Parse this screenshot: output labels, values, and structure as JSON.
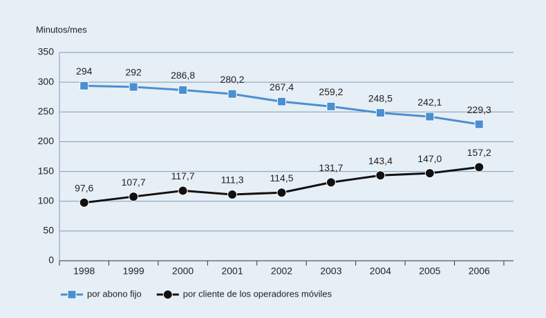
{
  "chart_data": {
    "type": "line",
    "y_label": "Minutos/mes",
    "categories": [
      "1998",
      "1999",
      "2000",
      "2001",
      "2002",
      "2003",
      "2004",
      "2005",
      "2006"
    ],
    "series": [
      {
        "name": "por abono fijo",
        "color": "#4a8fd0",
        "marker": "square",
        "values": [
          294,
          292,
          286.8,
          280.2,
          267.4,
          259.2,
          248.5,
          242.1,
          229.3
        ],
        "value_labels": [
          "294",
          "292",
          "286,8",
          "280,2",
          "267,4",
          "259,2",
          "248,5",
          "242,1",
          "229,3"
        ]
      },
      {
        "name": "por cliente de los operadores móviles",
        "color": "#111111",
        "marker": "circle",
        "values": [
          97.6,
          107.7,
          117.7,
          111.3,
          114.5,
          131.7,
          143.4,
          147.0,
          157.2
        ],
        "value_labels": [
          "97,6",
          "107,7",
          "117,7",
          "111,3",
          "114,5",
          "131,7",
          "143,4",
          "147,0",
          "157,2"
        ]
      }
    ],
    "ylim": [
      0,
      350
    ],
    "yticks": [
      0,
      50,
      100,
      150,
      200,
      250,
      300,
      350
    ],
    "grid": true,
    "legend": "bottom-left"
  }
}
